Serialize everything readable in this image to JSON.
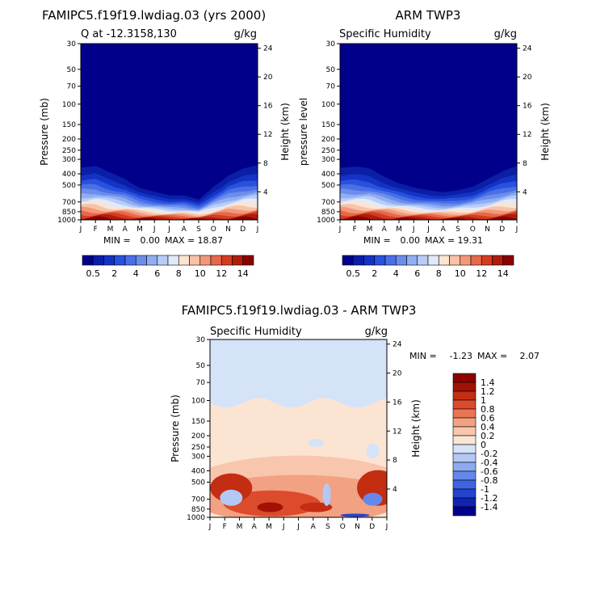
{
  "panels": [
    {
      "title": "FAMIPC5.f19f19.lwdiag.03 (yrs 2000)",
      "left_string": "Q at -12.3158,130",
      "right_string": "g/kg",
      "ylabel_left": "Pressure (mb)",
      "ylabel_right": "Height (km)",
      "min_label": "MIN =",
      "min_value": "0.00",
      "max_label": "MAX =",
      "max_value": "18.87"
    },
    {
      "title": "ARM TWP3",
      "left_string": "Specific Humidity",
      "right_string": "g/kg",
      "ylabel_left": "pressure level",
      "ylabel_right": "Height (km)",
      "min_label": "MIN =",
      "min_value": "0.00",
      "max_label": "MAX =",
      "max_value": "19.31"
    },
    {
      "title": "FAMIPC5.f19f19.lwdiag.03 - ARM TWP3",
      "left_string": "Specific Humidity",
      "right_string": "g/kg",
      "ylabel_left": "Pressure (mb)",
      "ylabel_right": "Height (km)",
      "min_label": "MIN =",
      "min_value": "-1.23",
      "max_label": "MAX =",
      "max_value": "2.07"
    }
  ],
  "colorbar_top": {
    "colors": [
      "#00008b",
      "#0a1fa6",
      "#1433c4",
      "#2851dd",
      "#4a6fe6",
      "#6b8eed",
      "#91aef2",
      "#b8cdf6",
      "#e0eaf9",
      "#fce4d3",
      "#f8c2a6",
      "#f29878",
      "#e7684a",
      "#d43c22",
      "#b01c0c",
      "#8b0000"
    ],
    "labels": [
      "0.5",
      "2",
      "4",
      "6",
      "8",
      "10",
      "12",
      "14"
    ]
  },
  "colorbar_diff": {
    "colors": [
      "#00008b",
      "#0f24b0",
      "#2444d0",
      "#3f64e2",
      "#6688ea",
      "#8eaaf1",
      "#b2c8f5",
      "#d4e3f8",
      "#fce4d3",
      "#f8c6ac",
      "#f2a183",
      "#e97556",
      "#dc4b2b",
      "#c32d12",
      "#a21204",
      "#8b0000"
    ],
    "labels": [
      "1.4",
      "1.2",
      "1",
      "0.8",
      "0.6",
      "0.4",
      "0.2",
      "0",
      "-0.2",
      "-0.4",
      "-0.6",
      "-0.8",
      "-1",
      "-1.2",
      "-1.4"
    ]
  },
  "chart_data": [
    {
      "type": "heatmap",
      "title": "FAMIPC5.f19f19.lwdiag.03 (yrs 2000)",
      "field": "Q at -12.3158,130",
      "units": "g/kg",
      "x": [
        "J",
        "F",
        "M",
        "A",
        "M",
        "J",
        "J",
        "A",
        "S",
        "O",
        "N",
        "D",
        "J"
      ],
      "y_pressure_mb": [
        30,
        50,
        70,
        100,
        150,
        200,
        250,
        300,
        400,
        500,
        700,
        850,
        1000
      ],
      "y_height_km": [
        24,
        20,
        16,
        12,
        8,
        4
      ],
      "ylabel": "Pressure (mb)",
      "ylabel_right": "Height (km)",
      "min": 0.0,
      "max": 18.87,
      "moist_top_pressure_by_month": [
        290,
        280,
        330,
        380,
        470,
        520,
        560,
        560,
        620,
        460,
        350,
        300,
        280
      ]
    },
    {
      "type": "heatmap",
      "title": "ARM TWP3",
      "field": "Specific Humidity",
      "units": "g/kg",
      "x": [
        "J",
        "F",
        "M",
        "A",
        "M",
        "J",
        "J",
        "A",
        "S",
        "O",
        "N",
        "D",
        "J"
      ],
      "y_pressure_mb": [
        30,
        50,
        70,
        100,
        150,
        200,
        250,
        300,
        400,
        500,
        700,
        850,
        1000
      ],
      "y_height_km": [
        24,
        20,
        16,
        12,
        8,
        4
      ],
      "ylabel": "pressure level",
      "ylabel_right": "Height (km)",
      "min": 0.0,
      "max": 19.31,
      "moist_top_pressure_by_month": [
        290,
        285,
        300,
        360,
        420,
        470,
        500,
        520,
        500,
        460,
        380,
        320,
        285
      ]
    },
    {
      "type": "heatmap",
      "title": "FAMIPC5.f19f19.lwdiag.03 - ARM TWP3",
      "field": "Specific Humidity",
      "units": "g/kg",
      "x": [
        "J",
        "F",
        "M",
        "A",
        "M",
        "J",
        "J",
        "A",
        "S",
        "O",
        "N",
        "D",
        "J"
      ],
      "y_pressure_mb": [
        30,
        50,
        70,
        100,
        150,
        200,
        250,
        300,
        400,
        500,
        700,
        850,
        1000
      ],
      "y_height_km": [
        24,
        20,
        16,
        12,
        8,
        4
      ],
      "ylabel": "Pressure (mb)",
      "ylabel_right": "Height (km)",
      "min": -1.23,
      "max": 2.07,
      "regions": [
        {
          "pressure_above_mb": 110,
          "sign": "negative",
          "approx": -0.1
        },
        {
          "pressure_range_mb": [
            110,
            400
          ],
          "sign": "positive",
          "approx": 0.1
        },
        {
          "pressure_range_mb": [
            400,
            1000
          ],
          "sign": "positive",
          "approx": 0.6
        }
      ]
    }
  ]
}
